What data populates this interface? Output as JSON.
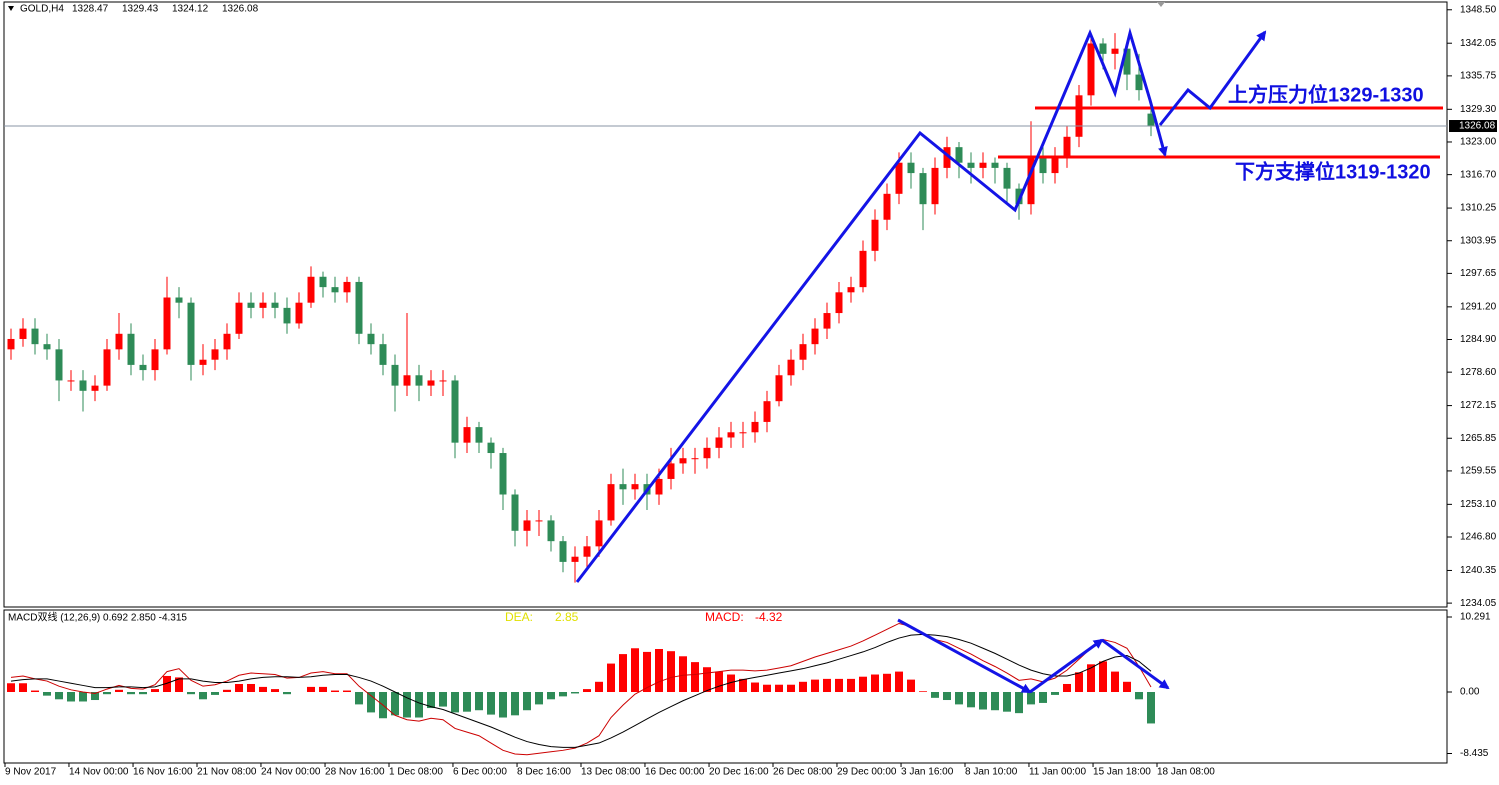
{
  "chart_data": [
    {
      "type": "candlestick",
      "title": "GOLD,H4",
      "header_values": [
        1328.47,
        1329.43,
        1324.12,
        1326.08
      ],
      "current_price": 1326.08,
      "up_color": "#ff0000",
      "down_color": "#2e8b57",
      "xlim": [
        0,
        120
      ],
      "ylim": [
        1233.3,
        1350.0
      ],
      "yticks": [
        {
          "value": 1348.5,
          "label": "1348.50"
        },
        1342.05,
        1335.75,
        {
          "value": 1329.3,
          "label": "1329.30"
        },
        {
          "value": 1323,
          "label": "1323.00"
        },
        {
          "value": 1316.7,
          "label": "1316.70"
        },
        1310.25,
        1303.95,
        1297.65,
        {
          "value": 1291.2,
          "label": "1291.20"
        },
        {
          "value": 1284.9,
          "label": "1284.90"
        },
        {
          "value": 1278.6,
          "label": "1278.60"
        },
        1272.15,
        1265.85,
        1259.55,
        {
          "value": 1253.1,
          "label": "1253.10"
        },
        {
          "value": 1246.8,
          "label": "1246.80"
        },
        1240.35,
        1234.05
      ],
      "annotations": [
        "上方压力位1329-1330",
        "下方支撑位1319-1320"
      ],
      "open": [
        1283,
        1285,
        1287,
        1284,
        1283,
        1277,
        1277,
        1275,
        1276,
        1283,
        1286,
        1280,
        1279,
        1283,
        1293,
        1292,
        1280,
        1281,
        1283,
        1286,
        1292,
        1291,
        1292,
        1291,
        1288,
        1292,
        1297,
        1295,
        1294,
        1296,
        1286,
        1284,
        1280,
        1276,
        1278,
        1276,
        1277,
        1277,
        1265,
        1268,
        1265,
        1263,
        1255,
        1248,
        1250,
        1250,
        1246,
        1242,
        1243,
        1245,
        1250,
        1257,
        1256,
        1257,
        1255,
        1258,
        1261,
        1262,
        1262,
        1264,
        1266,
        1267,
        1267,
        1269,
        1273,
        1278,
        1281,
        1284,
        1287,
        1290,
        1294,
        1295,
        1302,
        1308,
        1313,
        1319,
        1317,
        1311,
        1318,
        1322,
        1319,
        1318,
        1319,
        1318,
        1314,
        1311,
        1320,
        1317,
        1320,
        1324,
        1332,
        1342,
        1340,
        1341,
        1336,
        1328.47
      ],
      "high": [
        1287,
        1289,
        1289,
        1286,
        1285,
        1279,
        1279,
        1278,
        1285,
        1290,
        1288,
        1282,
        1285,
        1297,
        1295,
        1293,
        1284,
        1285,
        1288,
        1294,
        1294,
        1294,
        1294,
        1293,
        1294,
        1299,
        1298,
        1297,
        1297,
        1297,
        1288,
        1286,
        1282,
        1290,
        1280,
        1279,
        1279,
        1278,
        1270,
        1269,
        1266,
        1264,
        1256,
        1252,
        1252,
        1251,
        1247,
        1245,
        1247,
        1252,
        1259,
        1260,
        1259,
        1259,
        1260,
        1264,
        1264,
        1264,
        1266,
        1268,
        1269,
        1269,
        1271,
        1275,
        1280,
        1283,
        1286,
        1289,
        1292,
        1296,
        1297,
        1304,
        1310,
        1315,
        1321,
        1321,
        1318,
        1320,
        1324,
        1323,
        1321,
        1321,
        1320,
        1319,
        1315,
        1327,
        1322,
        1322,
        1326,
        1334,
        1344,
        1343,
        1344,
        1342,
        1340,
        1329.43
      ],
      "low": [
        1281,
        1283.5,
        1282,
        1281,
        1273,
        1275,
        1271,
        1273,
        1275,
        1281,
        1278,
        1277,
        1277,
        1282,
        1289,
        1277,
        1278,
        1279,
        1281,
        1285,
        1289,
        1289,
        1289,
        1286,
        1287,
        1291,
        1293,
        1292,
        1292,
        1284,
        1282,
        1278,
        1271,
        1274,
        1273,
        1274,
        1274,
        1262,
        1263,
        1263,
        1260,
        1252,
        1245,
        1245,
        1247,
        1244,
        1240,
        1238,
        1241,
        1243,
        1249,
        1253,
        1254,
        1252,
        1253,
        1256,
        1259,
        1259,
        1260,
        1262,
        1264,
        1264,
        1265,
        1267,
        1272,
        1276,
        1279,
        1282,
        1285,
        1288,
        1292,
        1294,
        1300,
        1306,
        1311,
        1314,
        1306,
        1309,
        1316,
        1316,
        1315,
        1316,
        1315,
        1311,
        1308,
        1309,
        1315,
        1315,
        1318,
        1322,
        1330,
        1337,
        1337,
        1333,
        1331,
        1324.12
      ],
      "close": [
        1285,
        1287,
        1284,
        1283,
        1277,
        1277,
        1275,
        1276,
        1283,
        1286,
        1280,
        1279,
        1283,
        1293,
        1292,
        1280,
        1281,
        1283,
        1286,
        1292,
        1291,
        1292,
        1291,
        1288,
        1292,
        1297,
        1295,
        1294,
        1296,
        1286,
        1284,
        1280,
        1276,
        1278,
        1276,
        1277,
        1277,
        1265,
        1268,
        1265,
        1263,
        1255,
        1248,
        1250,
        1250,
        1246,
        1242,
        1243,
        1245,
        1250,
        1257,
        1256,
        1257,
        1255,
        1258,
        1261,
        1262,
        1262,
        1264,
        1266,
        1267,
        1267,
        1269,
        1273,
        1278,
        1281,
        1284,
        1287,
        1290,
        1294,
        1295,
        1302,
        1308,
        1313,
        1319,
        1317,
        1311,
        1318,
        1322,
        1319,
        1318,
        1319,
        1318,
        1314,
        1311,
        1320,
        1317,
        1320,
        1324,
        1332,
        1342,
        1340,
        1341,
        1336,
        1333,
        1326.08
      ]
    },
    {
      "type": "macd",
      "title": "MACD双线 (12,26,9) 0.692 2.850 -4.315",
      "readouts": [
        {
          "label": "DEA:",
          "value": 2.85,
          "color": "#e0e000"
        },
        {
          "label": "MACD:",
          "value": -4.32,
          "color": "#ff0000"
        }
      ],
      "xlim": [
        0,
        120
      ],
      "ylim": [
        -9.74,
        11.25
      ],
      "yticks": [
        10.291,
        {
          "value": 0,
          "label": "0.00"
        },
        -8.435
      ],
      "xticks": [
        {
          "value": 0,
          "label": "9 Nov 2017"
        },
        {
          "value": 5.33,
          "label": "14 Nov 00:00"
        },
        {
          "value": 10.67,
          "label": "16 Nov 16:00"
        },
        {
          "value": 16,
          "label": "21 Nov 08:00"
        },
        {
          "value": 21.33,
          "label": "24 Nov 00:00"
        },
        {
          "value": 26.67,
          "label": "28 Nov 16:00"
        },
        {
          "value": 32,
          "label": "1 Dec 08:00"
        },
        {
          "value": 37.33,
          "label": "6 Dec 00:00"
        },
        {
          "value": 42.67,
          "label": "8 Dec 16:00"
        },
        {
          "value": 48,
          "label": "13 Dec 08:00"
        },
        {
          "value": 53.33,
          "label": "16 Dec 00:00"
        },
        {
          "value": 58.67,
          "label": "20 Dec 16:00"
        },
        {
          "value": 64,
          "label": "26 Dec 08:00"
        },
        {
          "value": 69.33,
          "label": "29 Dec 00:00"
        },
        {
          "value": 74.67,
          "label": "3 Jan 16:00"
        },
        {
          "value": 80,
          "label": "8 Jan 10:00"
        },
        {
          "value": 85.33,
          "label": "11 Jan 00:00"
        },
        {
          "value": 90.67,
          "label": "15 Jan 18:00"
        },
        {
          "value": 96,
          "label": "18 Jan 08:00"
        }
      ],
      "up_color": "#ff0000",
      "down_color": "#2e8b57",
      "values": [
        1.2,
        1.2,
        0.2,
        -0.5,
        -1.0,
        -1.3,
        -1.3,
        -1.1,
        -0.3,
        0.3,
        -0.3,
        -0.3,
        0.4,
        2.2,
        2.0,
        -0.3,
        -1.0,
        -0.4,
        0.3,
        1.1,
        1.1,
        0.7,
        0.4,
        -0.3,
        0,
        0.7,
        0.7,
        0.2,
        0.2,
        -1.7,
        -2.8,
        -3.6,
        -3.2,
        -3.5,
        -3.5,
        -2.2,
        -2.0,
        -2.8,
        -2.7,
        -2.5,
        -3.1,
        -3.5,
        -3.2,
        -2.5,
        -1.7,
        -1.0,
        -0.6,
        -0.2,
        0.4,
        1.4,
        3.9,
        5.2,
        6.0,
        5.5,
        5.9,
        5.6,
        4.9,
        4.1,
        3.4,
        2.8,
        2.4,
        1.8,
        1.3,
        1.0,
        1.0,
        1.0,
        1.4,
        1.7,
        1.8,
        1.8,
        1.8,
        2.1,
        2.4,
        2.5,
        2.8,
        1.7,
        0.1,
        -0.8,
        -1.1,
        -1.7,
        -2.1,
        -2.4,
        -2.5,
        -2.7,
        -2.9,
        -1.7,
        -1.5,
        -0.4,
        1.1,
        2.7,
        3.8,
        4.2,
        2.8,
        1.4,
        -1.0,
        -4.315
      ],
      "lines": [
        {
          "color": "#cc0000",
          "values": [
            2.0,
            2.2,
            1.8,
            1.5,
            0.8,
            0.3,
            0,
            -0.2,
            0.4,
            0.9,
            0.5,
            0.4,
            1.0,
            2.8,
            3.2,
            1.6,
            0.8,
            1.0,
            1.5,
            2.3,
            2.6,
            2.5,
            2.4,
            1.9,
            2.0,
            2.6,
            2.8,
            2.5,
            2.5,
            0.8,
            -0.5,
            -1.8,
            -3.2,
            -3.8,
            -4.0,
            -3.6,
            -3.8,
            -5.0,
            -5.5,
            -6.0,
            -7.0,
            -8.0,
            -8.5,
            -8.6,
            -8.4,
            -8.2,
            -8.0,
            -7.7,
            -7.0,
            -6.0,
            -3.5,
            -1.8,
            -0.3,
            0.6,
            1.4,
            2.0,
            2.3,
            2.4,
            2.6,
            2.8,
            3.0,
            3.0,
            2.9,
            3.0,
            3.3,
            3.6,
            4.2,
            4.8,
            5.3,
            5.8,
            6.3,
            7.0,
            7.8,
            8.6,
            9.4,
            9.0,
            8.0,
            7.2,
            6.8,
            6.0,
            5.2,
            4.3,
            3.5,
            2.6,
            1.6,
            1.8,
            1.4,
            1.9,
            3.0,
            4.5,
            6.0,
            7.2,
            6.8,
            6.0,
            3.5,
            0.692
          ]
        },
        {
          "color": "#000000",
          "values": [
            1.5,
            1.7,
            1.8,
            1.8,
            1.5,
            1.2,
            0.9,
            0.6,
            0.6,
            0.7,
            0.7,
            0.6,
            0.7,
            1.2,
            1.8,
            1.8,
            1.5,
            1.3,
            1.3,
            1.5,
            1.8,
            2.0,
            2.1,
            2.1,
            2.0,
            2.1,
            2.3,
            2.4,
            2.4,
            2.0,
            1.5,
            0.8,
            0,
            -0.8,
            -1.5,
            -2.0,
            -2.4,
            -3.0,
            -3.6,
            -4.2,
            -4.8,
            -5.5,
            -6.2,
            -6.8,
            -7.2,
            -7.5,
            -7.6,
            -7.6,
            -7.3,
            -7.0,
            -6.3,
            -5.5,
            -4.6,
            -3.7,
            -2.8,
            -2.0,
            -1.2,
            -0.5,
            0.2,
            0.8,
            1.3,
            1.7,
            2.0,
            2.3,
            2.6,
            2.9,
            3.2,
            3.6,
            4.0,
            4.5,
            5.0,
            5.5,
            6.1,
            6.8,
            7.4,
            7.8,
            7.9,
            7.8,
            7.6,
            7.2,
            6.7,
            6.0,
            5.3,
            4.5,
            3.7,
            3.0,
            2.5,
            2.2,
            2.2,
            2.6,
            3.3,
            4.2,
            4.8,
            5.0,
            4.2,
            2.85
          ]
        }
      ]
    }
  ]
}
